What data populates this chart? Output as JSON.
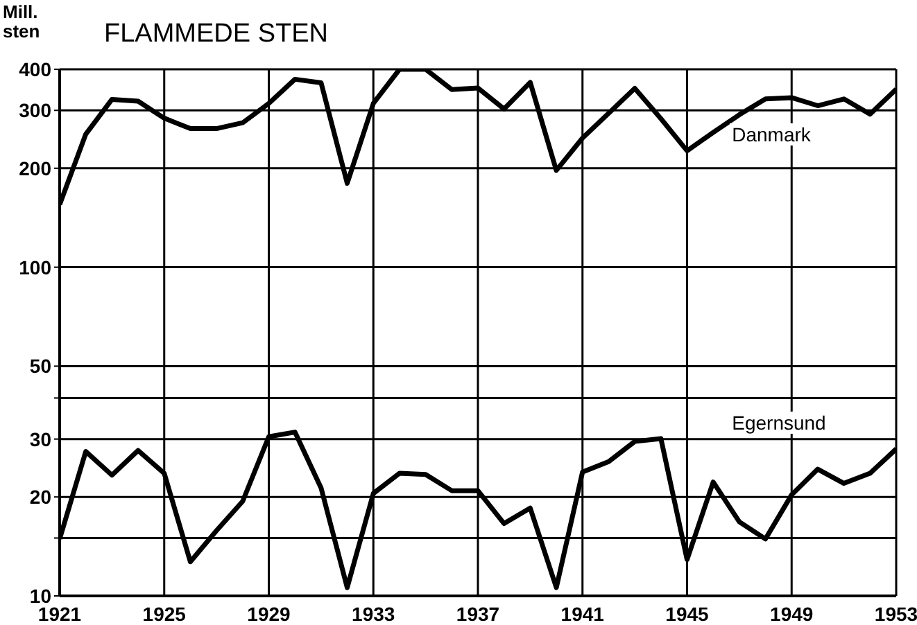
{
  "chart_data": {
    "type": "line",
    "title": "FLAMMEDE STEN",
    "ylabel": "Mill. sten",
    "log": "y",
    "grid": true,
    "legend": false,
    "marker": "none",
    "x": [
      1921,
      1922,
      1923,
      1924,
      1925,
      1926,
      1927,
      1928,
      1929,
      1930,
      1931,
      1932,
      1933,
      1934,
      1935,
      1936,
      1937,
      1938,
      1939,
      1940,
      1941,
      1942,
      1943,
      1944,
      1945,
      1946,
      1947,
      1948,
      1949,
      1950,
      1951,
      1952,
      1953
    ],
    "xlim": [
      1921,
      1953
    ],
    "xticks": [
      1921,
      1925,
      1929,
      1933,
      1937,
      1941,
      1945,
      1949,
      1953
    ],
    "ylim": [
      10,
      400
    ],
    "yticks": [
      10,
      {
        "value": 15,
        "label": null
      },
      20,
      30,
      {
        "value": 40,
        "label": null
      },
      50,
      100,
      200,
      300,
      400
    ],
    "series": [
      {
        "name": "Danmark",
        "color": "#000000",
        "line_style": "solid",
        "values": [
          155,
          254,
          324,
          320,
          284,
          264,
          264,
          275,
          315,
          373,
          364,
          180,
          315,
          400,
          400,
          347,
          351,
          303,
          365,
          197,
          247,
          294,
          350,
          283,
          226,
          257,
          291,
          325,
          328,
          310,
          325,
          292,
          348
        ]
      },
      {
        "name": "Egernsund",
        "color": "#000000",
        "line_style": "solid",
        "values": [
          14.9,
          27.5,
          23.3,
          27.7,
          23.6,
          12.7,
          15.8,
          19.4,
          30.5,
          31.5,
          21.3,
          10.6,
          20.5,
          23.6,
          23.4,
          20.9,
          20.9,
          16.6,
          18.5,
          10.6,
          23.8,
          25.6,
          29.5,
          30.1,
          12.9,
          22.2,
          16.8,
          14.9,
          20.3,
          24.3,
          22.0,
          23.6,
          28.0
        ]
      }
    ]
  }
}
